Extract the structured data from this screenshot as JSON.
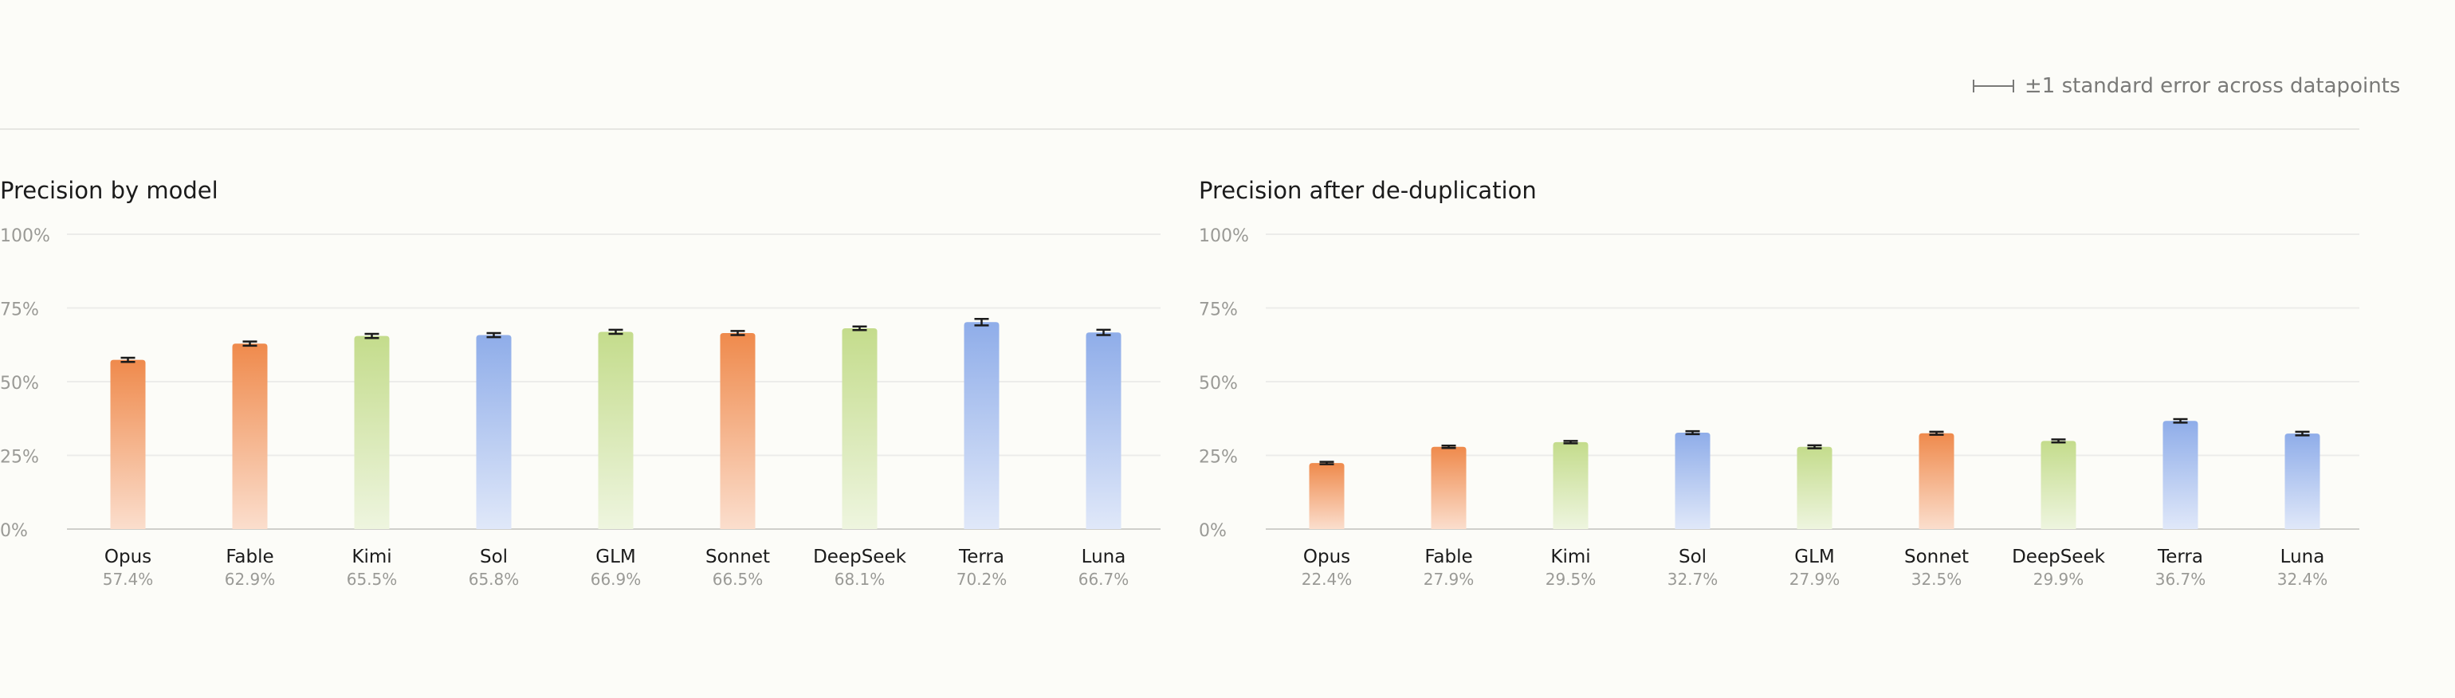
{
  "legend": {
    "label": "±1 standard error across datapoints",
    "icon": "error-bar-icon"
  },
  "colors": {
    "orange": "#ef8a4c",
    "green": "#c4dc8c",
    "blue": "#8fade9"
  },
  "chart_data": [
    {
      "type": "bar",
      "title": "Precision by model",
      "xlabel": "",
      "ylabel": "",
      "ylim": [
        0,
        100
      ],
      "yticks": [
        0,
        25,
        50,
        75,
        100
      ],
      "ytick_labels": [
        "0%",
        "25%",
        "50%",
        "75%",
        "100%"
      ],
      "grid": true,
      "categories": [
        "Opus",
        "Fable",
        "Kimi",
        "Sol",
        "GLM",
        "Sonnet",
        "DeepSeek",
        "Terra",
        "Luna"
      ],
      "values": [
        57.4,
        62.9,
        65.5,
        65.8,
        66.9,
        66.5,
        68.1,
        70.2,
        66.7
      ],
      "value_labels": [
        "57.4%",
        "62.9%",
        "65.5%",
        "65.8%",
        "66.9%",
        "66.5%",
        "68.1%",
        "70.2%",
        "66.7%"
      ],
      "errors": [
        0.7,
        0.7,
        0.7,
        0.7,
        0.7,
        0.7,
        0.6,
        1.1,
        0.9
      ],
      "bar_colors": [
        "orange",
        "orange",
        "green",
        "blue",
        "green",
        "orange",
        "green",
        "blue",
        "blue"
      ]
    },
    {
      "type": "bar",
      "title": "Precision after de-duplication",
      "xlabel": "",
      "ylabel": "",
      "ylim": [
        0,
        100
      ],
      "yticks": [
        0,
        25,
        50,
        75,
        100
      ],
      "ytick_labels": [
        "0%",
        "25%",
        "50%",
        "75%",
        "100%"
      ],
      "grid": true,
      "categories": [
        "Opus",
        "Fable",
        "Kimi",
        "Sol",
        "GLM",
        "Sonnet",
        "DeepSeek",
        "Terra",
        "Luna"
      ],
      "values": [
        22.4,
        27.9,
        29.5,
        32.7,
        27.9,
        32.5,
        29.9,
        36.7,
        32.4
      ],
      "value_labels": [
        "22.4%",
        "27.9%",
        "29.5%",
        "32.7%",
        "27.9%",
        "32.5%",
        "29.9%",
        "36.7%",
        "32.4%"
      ],
      "errors": [
        0.4,
        0.4,
        0.4,
        0.5,
        0.5,
        0.5,
        0.5,
        0.6,
        0.6
      ],
      "bar_colors": [
        "orange",
        "orange",
        "green",
        "blue",
        "green",
        "orange",
        "green",
        "blue",
        "blue"
      ]
    }
  ]
}
